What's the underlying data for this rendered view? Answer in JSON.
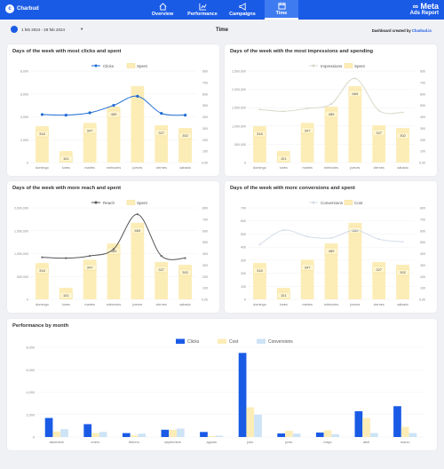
{
  "header": {
    "logo_text": "Charbud",
    "nav": [
      {
        "label": "Overview",
        "icon": "home-icon",
        "active": false
      },
      {
        "label": "Performance",
        "icon": "chart-icon",
        "active": false
      },
      {
        "label": "Campaigns",
        "icon": "megaphone-icon",
        "active": false
      },
      {
        "label": "Time",
        "icon": "calendar-icon",
        "active": true
      }
    ],
    "brand_line1": "∞ Meta",
    "brand_line2": "Ads Report"
  },
  "subbar": {
    "date_range": "1 feb 2024 - 29 feb 2024",
    "title": "Time",
    "created_prefix": "Dashboard created by ",
    "created_by": "Charbud.io"
  },
  "colors": {
    "primary": "#1a5be6",
    "bar": "#fcedb7",
    "bar_stroke": "#f3d27a",
    "line_blue": "#1d6bd4",
    "line_grey": "#555555",
    "line_light": "#d4dbe8",
    "light_blue": "#cde3f6"
  },
  "chart_data": [
    {
      "type": "bar",
      "title": "Days of the week with most clicks and spent",
      "categories": [
        "domingo",
        "lunes",
        "martes",
        "miércoles",
        "jueves",
        "viernes",
        "sábado"
      ],
      "series": [
        {
          "name": "Clicks",
          "type": "line",
          "values": [
            4200,
            4150,
            4350,
            5000,
            5800,
            4300,
            4150
          ]
        },
        {
          "name": "Spent",
          "type": "bar",
          "values": [
            318,
            101,
            347,
            489,
            669,
            327,
            302
          ],
          "labels": [
            "318",
            "101",
            "347",
            "489",
            "",
            "327",
            "302"
          ]
        }
      ],
      "y_left": {
        "min": 0,
        "max": 8000,
        "ticks": [
          "0",
          "2,000",
          "4,000",
          "6,000",
          "8,000"
        ]
      },
      "y_right": {
        "min": 0,
        "max": 800,
        "ticks": [
          "0,00",
          "100",
          "200",
          "300",
          "400",
          "500",
          "600",
          "700",
          "800"
        ]
      }
    },
    {
      "type": "bar",
      "title": "Days of the week with the most impressions and spending",
      "categories": [
        "domingo",
        "lunes",
        "martes",
        "miércoles",
        "jueves",
        "viernes",
        "sábado"
      ],
      "series": [
        {
          "name": "Impressions",
          "type": "line",
          "values": [
            1450000,
            1400000,
            1480000,
            1600000,
            2300000,
            1420000,
            1370000
          ]
        },
        {
          "name": "Spent",
          "type": "bar",
          "values": [
            318,
            101,
            347,
            489,
            669,
            327,
            302
          ],
          "labels": [
            "318",
            "101",
            "347",
            "489",
            "669",
            "327",
            "302"
          ]
        }
      ],
      "y_left": {
        "min": 0,
        "max": 2500000,
        "ticks": [
          "0",
          "500,000",
          "1,000,000",
          "1,500,000",
          "2,000,000",
          "2,500,000"
        ]
      },
      "y_right": {
        "min": 0,
        "max": 800,
        "ticks": [
          "0,00",
          "100",
          "200",
          "300",
          "400",
          "500",
          "600",
          "700",
          "800"
        ]
      }
    },
    {
      "type": "bar",
      "title": "Days of the week with more reach and spent",
      "categories": [
        "domingo",
        "lunes",
        "martes",
        "miércoles",
        "jueves",
        "viernes",
        "sábado"
      ],
      "series": [
        {
          "name": "Reach",
          "type": "line",
          "values": [
            920000,
            900000,
            950000,
            1100000,
            1860000,
            950000,
            900000
          ]
        },
        {
          "name": "Spent",
          "type": "bar",
          "values": [
            318,
            101,
            347,
            489,
            669,
            327,
            302
          ],
          "labels": [
            "318",
            "101",
            "347",
            "489",
            "669",
            "327",
            "302"
          ]
        }
      ],
      "y_left": {
        "min": 0,
        "max": 2000000,
        "ticks": [
          "0",
          "500,000",
          "1,000,000",
          "1,500,000",
          "2,000,000"
        ]
      },
      "y_right": {
        "min": 0,
        "max": 800,
        "ticks": [
          "0,00",
          "100",
          "200",
          "300",
          "400",
          "500",
          "600",
          "700",
          "800"
        ]
      }
    },
    {
      "type": "bar",
      "title": "Days of the week with more conversions and spent",
      "categories": [
        "domingo",
        "lunes",
        "martes",
        "miércoles",
        "jueves",
        "viernes",
        "sábado"
      ],
      "series": [
        {
          "name": "Conversions",
          "type": "line",
          "values": [
            420,
            530,
            480,
            470,
            530,
            460,
            440
          ]
        },
        {
          "name": "Cost",
          "type": "bar",
          "values": [
            318,
            101,
            347,
            489,
            669,
            327,
            302
          ],
          "labels": [
            "318",
            "101",
            "347",
            "489",
            "669",
            "327",
            "302"
          ]
        }
      ],
      "y_left": {
        "min": 0,
        "max": 700,
        "ticks": [
          "0",
          "100",
          "200",
          "300",
          "400",
          "500",
          "600",
          "700"
        ]
      },
      "y_right": {
        "min": 0,
        "max": 800,
        "ticks": [
          "0,00",
          "100",
          "200",
          "300",
          "400",
          "500",
          "600",
          "700",
          "800"
        ]
      }
    },
    {
      "type": "bar",
      "title": "Performance by month",
      "categories": [
        "diciembre",
        "enero",
        "febrero",
        "septiembre",
        "agosto",
        "julio",
        "junio",
        "mayo",
        "abril",
        "marzo"
      ],
      "series": [
        {
          "name": "Clicks",
          "values": [
            1700,
            1150,
            350,
            650,
            450,
            7500,
            320,
            400,
            2300,
            2750
          ]
        },
        {
          "name": "Cost",
          "values": [
            500,
            350,
            150,
            650,
            100,
            2650,
            550,
            600,
            1700,
            900
          ]
        },
        {
          "name": "Conversions",
          "values": [
            700,
            450,
            300,
            750,
            120,
            2000,
            300,
            250,
            350,
            350
          ]
        }
      ],
      "y": {
        "min": 0,
        "max": 8000,
        "ticks": [
          "0",
          "2,000",
          "4,000",
          "6,000",
          "8,000"
        ]
      }
    }
  ]
}
